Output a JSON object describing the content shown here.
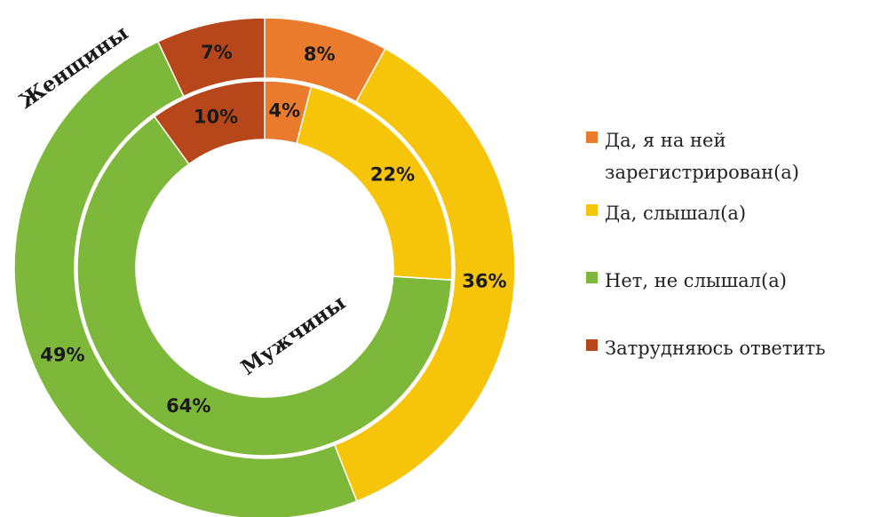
{
  "chart_data": {
    "type": "doughnut",
    "categories": [
      "Да, я на ней зарегистрирован(а)",
      "Да, слышал(а)",
      "Нет, не слышал(а)",
      "Затрудняюсь ответить"
    ],
    "colors": [
      "#ea7a2c",
      "#f6c509",
      "#7db83a",
      "#b7461a"
    ],
    "series": [
      {
        "name": "Женщины",
        "values": [
          8,
          36,
          49,
          7
        ],
        "value_labels": [
          "8%",
          "36%",
          "49%",
          "7%"
        ]
      },
      {
        "name": "Мужчины",
        "values": [
          4,
          22,
          64,
          10
        ],
        "value_labels": [
          "4%",
          "22%",
          "64%",
          "10%"
        ]
      }
    ],
    "legend": "right"
  }
}
